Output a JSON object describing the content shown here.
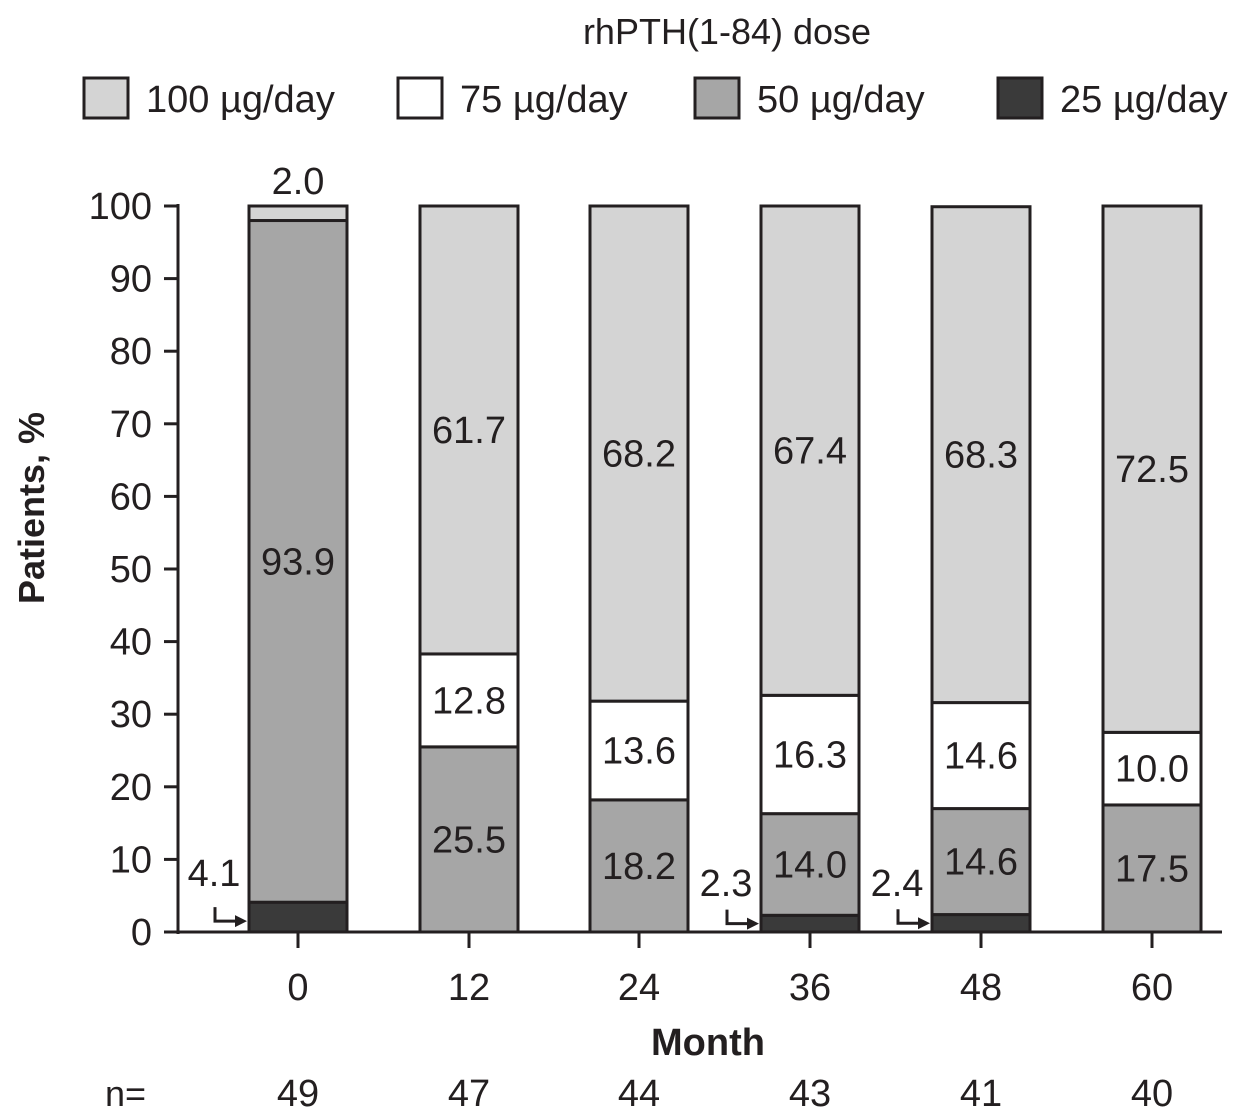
{
  "legend": {
    "title": "rhPTH(1-84) dose"
  },
  "axis": {
    "ylabel": "Patients, %",
    "xlabel": "Month",
    "n_label": "n="
  },
  "chart_data": {
    "type": "bar",
    "stacked": true,
    "categories": [
      "0",
      "12",
      "24",
      "36",
      "48",
      "60"
    ],
    "n": [
      "49",
      "47",
      "44",
      "43",
      "41",
      "40"
    ],
    "ylim": [
      0,
      100
    ],
    "yticks": [
      0,
      10,
      20,
      30,
      40,
      50,
      60,
      70,
      80,
      90,
      100
    ],
    "ylabel": "Patients, %",
    "xlabel": "Month",
    "legend_title": "rhPTH(1-84) dose",
    "legend_position": "top",
    "grid": false,
    "series": [
      {
        "name": "25 µg/day",
        "color": "#3a3a3a",
        "values": [
          4.1,
          0,
          0,
          2.3,
          2.4,
          0
        ],
        "labels": [
          "4.1",
          "",
          "",
          "2.3",
          "2.4",
          ""
        ]
      },
      {
        "name": "50 µg/day",
        "color": "#a6a6a6",
        "values": [
          93.9,
          25.5,
          18.2,
          14.0,
          14.6,
          17.5
        ],
        "labels": [
          "93.9",
          "25.5",
          "18.2",
          "14.0",
          "14.6",
          "17.5"
        ]
      },
      {
        "name": "75 µg/day",
        "color": "#ffffff",
        "values": [
          0,
          12.8,
          13.6,
          16.3,
          14.6,
          10.0
        ],
        "labels": [
          "",
          "12.8",
          "13.6",
          "16.3",
          "14.6",
          "10.0"
        ]
      },
      {
        "name": "100 µg/day",
        "color": "#d4d4d4",
        "values": [
          2.0,
          61.7,
          68.2,
          67.4,
          68.3,
          72.5
        ],
        "labels": [
          "2.0",
          "61.7",
          "68.2",
          "67.4",
          "68.3",
          "72.5"
        ]
      }
    ]
  }
}
